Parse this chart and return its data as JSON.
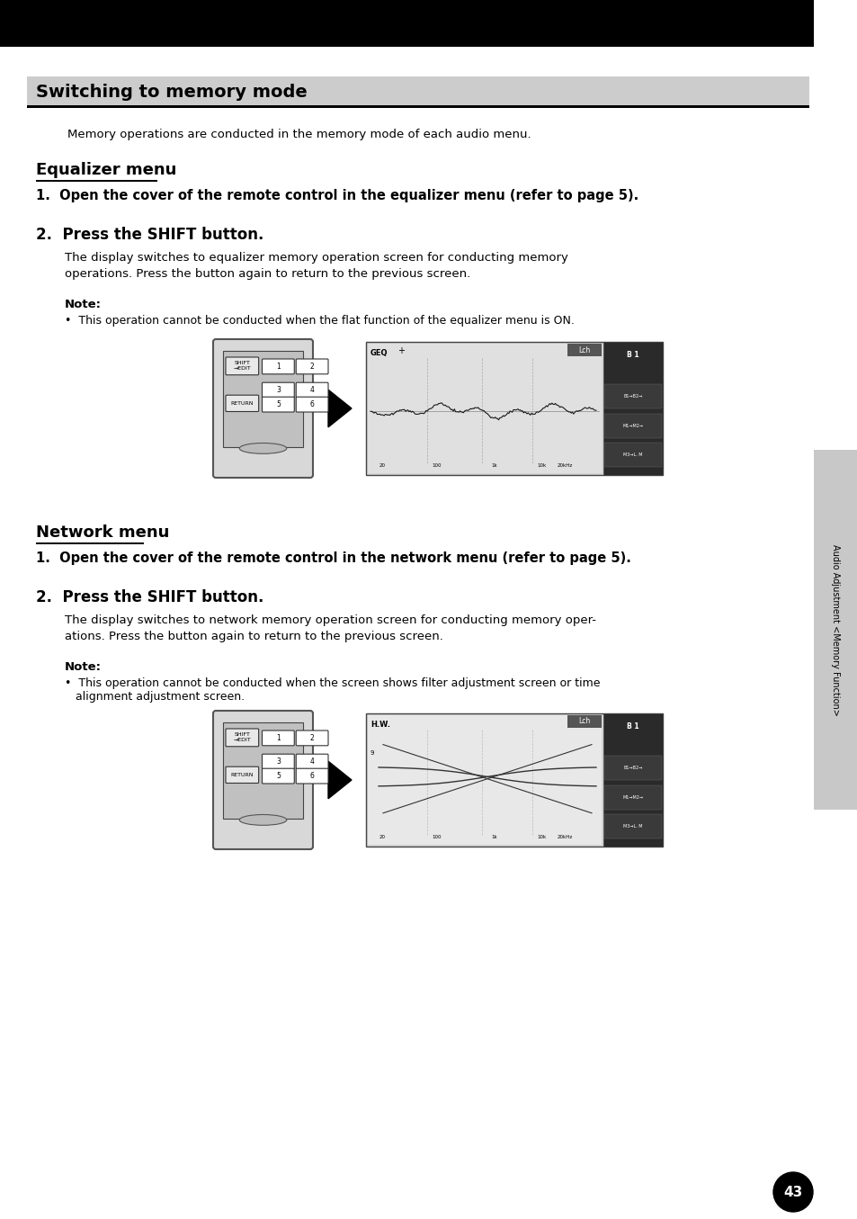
{
  "page_bg": "#ffffff",
  "black_bar_color": "#000000",
  "gray_title_bg": "#cccccc",
  "main_title": "Switching to memory mode",
  "intro_text": "Memory operations are conducted in the memory mode of each audio menu.",
  "section1_title": "Equalizer menu",
  "step1_eq": "1.  Open the cover of the remote control in the equalizer menu (refer to page 5).",
  "step2_eq_header": "2.  Press the SHIFT button.",
  "step2_eq_body1": "The display switches to equalizer memory operation screen for conducting memory",
  "step2_eq_body2": "operations. Press the button again to return to the previous screen.",
  "note_eq_header": "Note:",
  "note_eq_body": "•  This operation cannot be conducted when the flat function of the equalizer menu is ON.",
  "section2_title": "Network menu",
  "step1_net": "1.  Open the cover of the remote control in the network menu (refer to page 5).",
  "step2_net_header": "2.  Press the SHIFT button.",
  "step2_net_body1": "The display switches to network memory operation screen for conducting memory oper-",
  "step2_net_body2": "ations. Press the button again to return to the previous screen.",
  "note_net_header": "Note:",
  "note_net_body1": "•  This operation cannot be conducted when the screen shows filter adjustment screen or time",
  "note_net_body2": "   alignment adjustment screen.",
  "side_label": "Audio Adjustment <Memory Function>",
  "page_number": "43",
  "sidebar_bg": "#c8c8c8",
  "sidebar_tab_color": "#888888"
}
